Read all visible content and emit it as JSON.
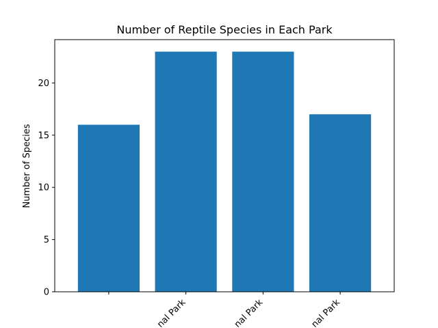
{
  "chart_data": {
    "type": "bar",
    "title": "Number of Reptile Species in Each Park",
    "xlabel": "",
    "ylabel": "Number of Species",
    "categories": [
      "",
      "nal Park",
      "nal Park",
      "nal Park"
    ],
    "values": [
      16,
      23,
      23,
      17
    ],
    "ylim": [
      0,
      24.15
    ],
    "yticks": [
      0,
      5,
      10,
      15,
      20
    ],
    "bar_color": "#1f77b4",
    "grid": false,
    "legend": null
  }
}
